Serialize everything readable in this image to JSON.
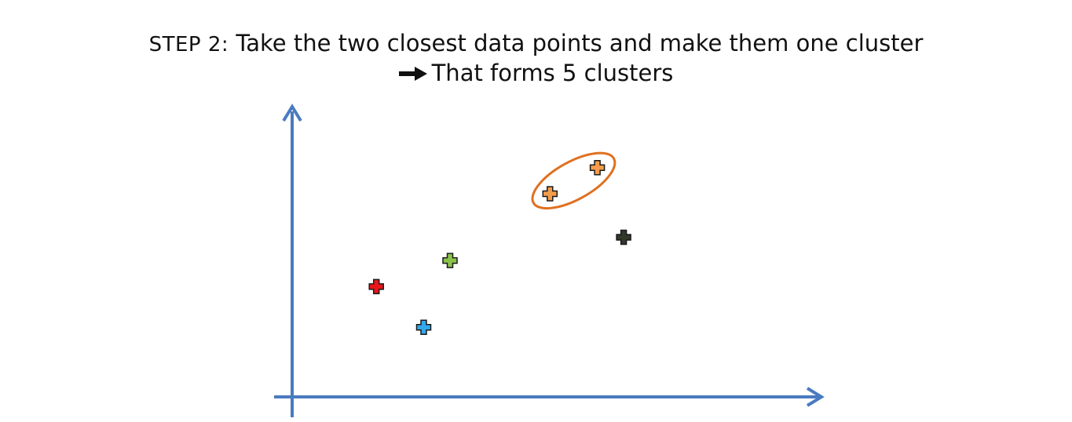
{
  "heading": {
    "step_label": "STEP 2:",
    "step_text": " Take the two closest data points and make them one cluster",
    "result_text": "That forms 5 clusters"
  },
  "icons": {
    "result_arrow": "right-arrow-icon",
    "point_marker": "plus-icon"
  },
  "colors": {
    "axis": "#4a7bbf",
    "merge_ellipse": "#e07020",
    "text": "#111111"
  },
  "chart_data": {
    "type": "scatter",
    "title": "STEP 2: Take the two closest data points and make them one cluster",
    "subtitle": "That forms 5 clusters",
    "xlabel": "",
    "ylabel": "",
    "grid": false,
    "xlim": [
      0,
      100
    ],
    "ylim": [
      0,
      100
    ],
    "points": [
      {
        "x": 16,
        "y": 38,
        "color": "#e8151b",
        "cluster": 1
      },
      {
        "x": 25,
        "y": 24,
        "color": "#34a8ec",
        "cluster": 2
      },
      {
        "x": 30,
        "y": 47,
        "color": "#8bc34a",
        "cluster": 3
      },
      {
        "x": 49,
        "y": 70,
        "color": "#f39c4c",
        "cluster": 4
      },
      {
        "x": 58,
        "y": 79,
        "color": "#f39c4c",
        "cluster": 4
      },
      {
        "x": 63,
        "y": 55,
        "color": "#2f3a2a",
        "cluster": 5
      }
    ],
    "merged_cluster": 4,
    "cluster_count": 5
  }
}
